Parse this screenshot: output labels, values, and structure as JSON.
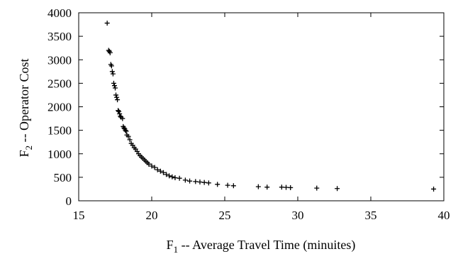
{
  "chart_data": {
    "type": "scatter",
    "title": "",
    "xlabel": {
      "main": "F",
      "sub": "1",
      "rest": " -- Average Travel Time (minuites)"
    },
    "ylabel": {
      "main": "F",
      "sub": "2",
      "rest": " -- Operator Cost"
    },
    "xlim": [
      15,
      40
    ],
    "ylim": [
      0,
      4000
    ],
    "xticks": [
      15,
      20,
      25,
      30,
      35,
      40
    ],
    "yticks": [
      0,
      500,
      1000,
      1500,
      2000,
      2500,
      3000,
      3500,
      4000
    ],
    "grid": false,
    "legend": "none",
    "marker": "+",
    "marker_color": "#000000",
    "series": [
      {
        "x": [
          16.95,
          17.05,
          17.1,
          17.15,
          17.2,
          17.25,
          17.3,
          17.35,
          17.4,
          17.45,
          17.5,
          17.55,
          17.6,
          17.65,
          17.7,
          17.75,
          17.8,
          17.85,
          17.9,
          18.0,
          18.05,
          18.1,
          18.15,
          18.2,
          18.25,
          18.3,
          18.4,
          18.5,
          18.6,
          18.7,
          18.8,
          18.9,
          19.0,
          19.1,
          19.2,
          19.3,
          19.4,
          19.5,
          19.6,
          19.7,
          19.8,
          20.0,
          20.2,
          20.4,
          20.6,
          20.8,
          21.0,
          21.2,
          21.4,
          21.6,
          21.9,
          22.3,
          22.6,
          23.0,
          23.3,
          23.6,
          23.9,
          24.5,
          25.2,
          25.6,
          27.3,
          27.9,
          28.9,
          29.2,
          29.5,
          31.3,
          32.7,
          39.3
        ],
        "y": [
          3780,
          3200,
          3180,
          3150,
          2900,
          2870,
          2750,
          2700,
          2500,
          2450,
          2400,
          2250,
          2200,
          2150,
          1920,
          1900,
          1850,
          1800,
          1780,
          1750,
          1580,
          1550,
          1530,
          1500,
          1480,
          1400,
          1370,
          1300,
          1220,
          1180,
          1130,
          1100,
          1050,
          1000,
          960,
          930,
          900,
          870,
          840,
          810,
          780,
          740,
          710,
          660,
          630,
          600,
          560,
          530,
          510,
          490,
          480,
          440,
          420,
          410,
          400,
          390,
          380,
          350,
          330,
          320,
          300,
          290,
          290,
          285,
          280,
          270,
          260,
          250
        ]
      }
    ]
  }
}
